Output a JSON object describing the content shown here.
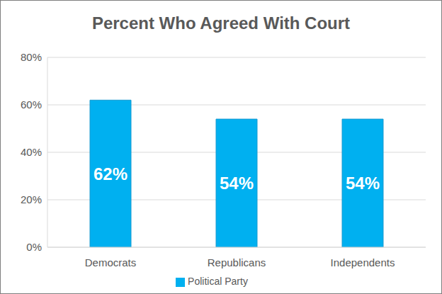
{
  "chart_data": {
    "type": "bar",
    "title": "Percent Who Agreed With Court",
    "categories": [
      "Democrats",
      "Republicans",
      "Independents"
    ],
    "series": [
      {
        "name": "Political Party",
        "color": "#00B0F0",
        "values": [
          62,
          54,
          54
        ],
        "value_labels": [
          "62%",
          "54%",
          "54%"
        ]
      }
    ],
    "ylim": [
      0,
      80
    ],
    "yticks": [
      {
        "value": 0,
        "label": "0%"
      },
      {
        "value": 20,
        "label": "20%"
      },
      {
        "value": 40,
        "label": "40%"
      },
      {
        "value": 60,
        "label": "60%"
      },
      {
        "value": 80,
        "label": "80%"
      }
    ],
    "grid": true,
    "data_labels": true,
    "legend": "bottom"
  }
}
